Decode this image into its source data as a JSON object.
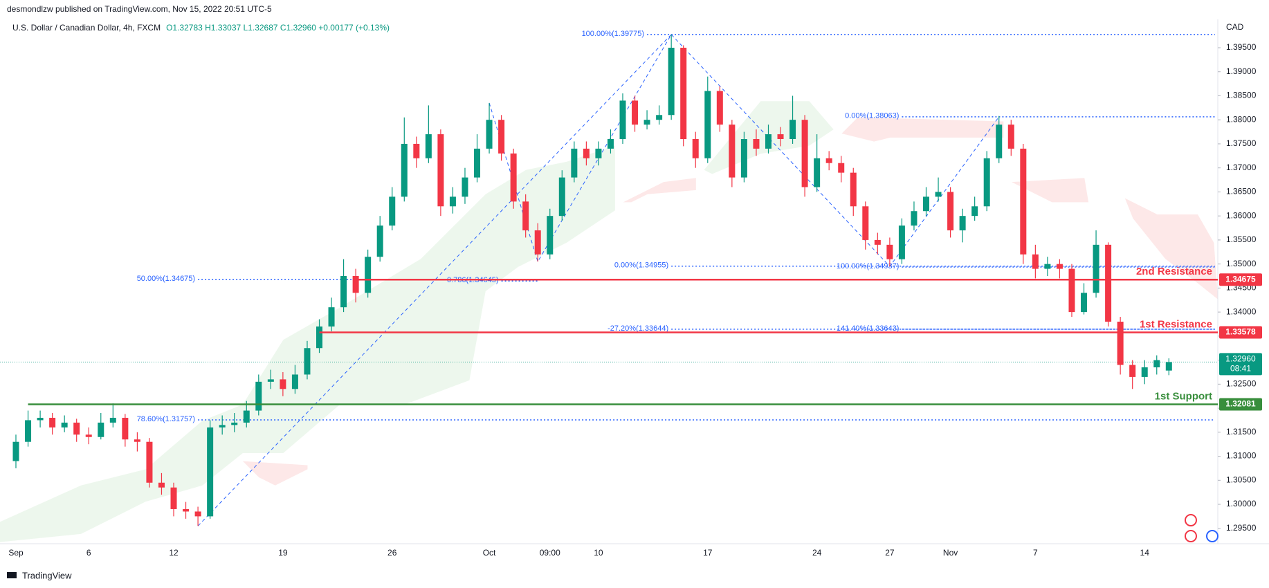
{
  "header": {
    "publisher": "desmondlzw published on TradingView.com, Nov 15, 2022 20:51 UTC-5",
    "logo": "TradingView"
  },
  "chart_data": {
    "type": "candlestick",
    "title": "U.S. Dollar / Canadian Dollar, 4h, FXCM",
    "ohlc_text": "O1.32783 H1.33037 L1.32687 C1.32960 +0.00177 (+0.13%)",
    "currency": "CAD",
    "up_color": "#089981",
    "down_color": "#f23645",
    "fib_color": "#2962ff",
    "categories": [
      "Sep",
      null,
      null,
      null,
      null,
      null,
      "6",
      null,
      null,
      null,
      null,
      null,
      null,
      "12",
      null,
      null,
      null,
      null,
      null,
      null,
      null,
      null,
      "19",
      null,
      null,
      null,
      null,
      null,
      null,
      null,
      null,
      "26",
      null,
      null,
      null,
      null,
      null,
      null,
      null,
      "Oct",
      null,
      null,
      null,
      null,
      "09:00",
      null,
      null,
      null,
      "10",
      null,
      null,
      null,
      null,
      null,
      null,
      null,
      null,
      "17",
      null,
      null,
      null,
      null,
      null,
      null,
      null,
      null,
      "24",
      null,
      null,
      null,
      null,
      null,
      "27",
      null,
      null,
      null,
      null,
      "Nov",
      null,
      null,
      null,
      null,
      null,
      null,
      "7",
      null,
      null,
      null,
      null,
      null,
      null,
      null,
      null,
      "14",
      null,
      null
    ],
    "open": [
      1.309,
      1.313,
      1.3175,
      1.318,
      1.316,
      1.317,
      1.3145,
      1.314,
      1.317,
      1.318,
      1.3135,
      1.313,
      1.3045,
      1.3035,
      1.299,
      1.2985,
      1.2975,
      1.316,
      1.3165,
      1.317,
      1.3195,
      1.3255,
      1.326,
      1.324,
      1.327,
      1.3325,
      1.337,
      1.341,
      1.3475,
      1.344,
      1.3515,
      1.358,
      1.364,
      1.375,
      1.372,
      1.377,
      1.362,
      1.364,
      1.368,
      1.374,
      1.38,
      1.373,
      1.363,
      1.357,
      1.352,
      1.36,
      1.368,
      1.374,
      1.372,
      1.374,
      1.376,
      1.384,
      1.379,
      1.38,
      1.381,
      1.395,
      1.376,
      1.372,
      1.386,
      1.379,
      1.368,
      1.376,
      1.374,
      1.377,
      1.376,
      1.38,
      1.366,
      1.372,
      1.371,
      1.369,
      1.362,
      1.355,
      1.354,
      1.351,
      1.358,
      1.361,
      1.364,
      1.365,
      1.357,
      1.36,
      1.362,
      1.372,
      1.379,
      1.374,
      1.352,
      1.349,
      1.35,
      1.349,
      1.34,
      1.344,
      1.354,
      1.338,
      1.329,
      1.3265,
      1.3285,
      1.32783
    ],
    "high": [
      1.3145,
      1.3195,
      1.3195,
      1.319,
      1.3185,
      1.3178,
      1.316,
      1.319,
      1.321,
      1.3188,
      1.315,
      1.3138,
      1.3065,
      1.3045,
      1.3005,
      1.2995,
      1.3175,
      1.3185,
      1.319,
      1.3215,
      1.327,
      1.328,
      1.3275,
      1.329,
      1.334,
      1.3385,
      1.343,
      1.351,
      1.349,
      1.353,
      1.36,
      1.366,
      1.3805,
      1.3765,
      1.383,
      1.378,
      1.366,
      1.37,
      1.377,
      1.3835,
      1.381,
      1.374,
      1.3645,
      1.3585,
      1.3615,
      1.3695,
      1.3755,
      1.3755,
      1.3755,
      1.378,
      1.3855,
      1.385,
      1.382,
      1.383,
      1.39775,
      1.3955,
      1.3775,
      1.389,
      1.387,
      1.38,
      1.3775,
      1.378,
      1.379,
      1.3785,
      1.385,
      1.381,
      1.377,
      1.3735,
      1.3725,
      1.37,
      1.363,
      1.3565,
      1.3555,
      1.3595,
      1.363,
      1.366,
      1.368,
      1.366,
      1.3615,
      1.364,
      1.3735,
      1.3808,
      1.38,
      1.375,
      1.354,
      1.3515,
      1.351,
      1.35,
      1.346,
      1.357,
      1.3545,
      1.339,
      1.33,
      1.33,
      1.331,
      1.33037
    ],
    "low": [
      1.3075,
      1.312,
      1.316,
      1.3145,
      1.315,
      1.313,
      1.3125,
      1.3135,
      1.316,
      1.312,
      1.311,
      1.3035,
      1.302,
      1.2975,
      1.297,
      1.2955,
      1.297,
      1.3145,
      1.315,
      1.316,
      1.3185,
      1.324,
      1.3225,
      1.323,
      1.326,
      1.3315,
      1.336,
      1.34,
      1.342,
      1.343,
      1.3505,
      1.357,
      1.363,
      1.37,
      1.371,
      1.36,
      1.3605,
      1.3625,
      1.367,
      1.373,
      1.3715,
      1.3615,
      1.3555,
      1.3505,
      1.351,
      1.359,
      1.367,
      1.3705,
      1.3705,
      1.373,
      1.375,
      1.3775,
      1.378,
      1.379,
      1.38,
      1.3745,
      1.37,
      1.371,
      1.3775,
      1.366,
      1.367,
      1.3725,
      1.373,
      1.3745,
      1.375,
      1.364,
      1.365,
      1.3695,
      1.367,
      1.36,
      1.353,
      1.352,
      1.3495,
      1.35,
      1.357,
      1.36,
      1.363,
      1.3555,
      1.3545,
      1.359,
      1.361,
      1.371,
      1.3725,
      1.35,
      1.347,
      1.3475,
      1.347,
      1.339,
      1.3395,
      1.343,
      1.337,
      1.327,
      1.324,
      1.325,
      1.327,
      1.32687
    ],
    "close": [
      1.313,
      1.3175,
      1.318,
      1.316,
      1.317,
      1.3145,
      1.314,
      1.317,
      1.318,
      1.3135,
      1.313,
      1.3045,
      1.3035,
      1.299,
      1.2985,
      1.2975,
      1.316,
      1.3165,
      1.317,
      1.3195,
      1.3255,
      1.326,
      1.324,
      1.327,
      1.3325,
      1.337,
      1.341,
      1.3475,
      1.344,
      1.3515,
      1.358,
      1.364,
      1.375,
      1.372,
      1.377,
      1.362,
      1.364,
      1.368,
      1.374,
      1.38,
      1.373,
      1.363,
      1.357,
      1.352,
      1.36,
      1.368,
      1.374,
      1.372,
      1.374,
      1.376,
      1.384,
      1.379,
      1.38,
      1.381,
      1.395,
      1.376,
      1.372,
      1.386,
      1.379,
      1.368,
      1.376,
      1.374,
      1.377,
      1.376,
      1.38,
      1.366,
      1.372,
      1.371,
      1.369,
      1.362,
      1.355,
      1.354,
      1.351,
      1.358,
      1.361,
      1.364,
      1.365,
      1.357,
      1.36,
      1.362,
      1.372,
      1.379,
      1.374,
      1.352,
      1.349,
      1.35,
      1.349,
      1.34,
      1.344,
      1.354,
      1.338,
      1.329,
      1.3265,
      1.3285,
      1.33,
      1.3296
    ],
    "ylim": [
      1.2918,
      1.4009
    ],
    "yticks": [
      {
        "value": 1.295,
        "label": "1.29500"
      },
      {
        "value": 1.3,
        "label": "1.30000"
      },
      {
        "value": 1.305,
        "label": "1.30500"
      },
      {
        "value": 1.31,
        "label": "1.31000"
      },
      {
        "value": 1.315,
        "label": "1.31500"
      },
      {
        "value": 1.32,
        "label": "1.32000"
      },
      {
        "value": 1.325,
        "label": "1.32500"
      },
      {
        "value": 1.33,
        "label": "1.33000"
      },
      {
        "value": 1.335,
        "label": "1.33500"
      },
      {
        "value": 1.34,
        "label": "1.34000"
      },
      {
        "value": 1.345,
        "label": "1.34500"
      },
      {
        "value": 1.35,
        "label": "1.35000"
      },
      {
        "value": 1.355,
        "label": "1.35500"
      },
      {
        "value": 1.36,
        "label": "1.36000"
      },
      {
        "value": 1.365,
        "label": "1.36500"
      },
      {
        "value": 1.37,
        "label": "1.37000"
      },
      {
        "value": 1.375,
        "label": "1.37500"
      },
      {
        "value": 1.38,
        "label": "1.38000"
      },
      {
        "value": 1.385,
        "label": "1.38500"
      },
      {
        "value": 1.39,
        "label": "1.39000"
      },
      {
        "value": 1.395,
        "label": "1.39500"
      }
    ],
    "levels": [
      {
        "name": "2nd Resistance",
        "value": 1.34675,
        "color": "#f23645",
        "from": 28
      },
      {
        "name": "1st Resistance",
        "value": 1.33578,
        "color": "#f23645",
        "from": 25
      },
      {
        "name": "1st Support",
        "value": 1.32081,
        "color": "#388e3c",
        "from": 1
      }
    ],
    "last_price": {
      "value": 1.3296,
      "label": "1.32960",
      "countdown": "08:41",
      "color": "#089981"
    },
    "fib_levels": [
      {
        "label": "100.00%(1.39775)",
        "value": 1.39775,
        "from": 52,
        "to": 99
      },
      {
        "label": "0.00%(1.38063)",
        "value": 1.38063,
        "from": 73,
        "to": 99
      },
      {
        "label": "50.00%(1.34675)",
        "value": 1.34675,
        "from": 15,
        "to": 28
      },
      {
        "label": "0.786(1.34645)",
        "value": 1.34645,
        "from": 40,
        "to": 43
      },
      {
        "label": "0.00%(1.34955)",
        "value": 1.34955,
        "from": 54,
        "to": 99
      },
      {
        "label": "100.00%(1.34937)",
        "value": 1.34937,
        "from": 73,
        "to": 99
      },
      {
        "label": "-27.20%(1.33644)",
        "value": 1.33644,
        "from": 54,
        "to": 99
      },
      {
        "label": "141.40%(1.33643)",
        "value": 1.33643,
        "from": 73,
        "to": 99
      },
      {
        "label": "78.60%(1.31757)",
        "value": 1.31757,
        "from": 15,
        "to": 99
      }
    ],
    "trend_lines": [
      {
        "x": [
          15,
          54
        ],
        "y": [
          1.2955,
          1.39775
        ]
      },
      {
        "x": [
          39,
          43,
          54
        ],
        "y": [
          1.3835,
          1.3505,
          1.39775
        ]
      },
      {
        "x": [
          54,
          72,
          81
        ],
        "y": [
          1.39775,
          1.3495,
          1.38063
        ]
      }
    ]
  }
}
